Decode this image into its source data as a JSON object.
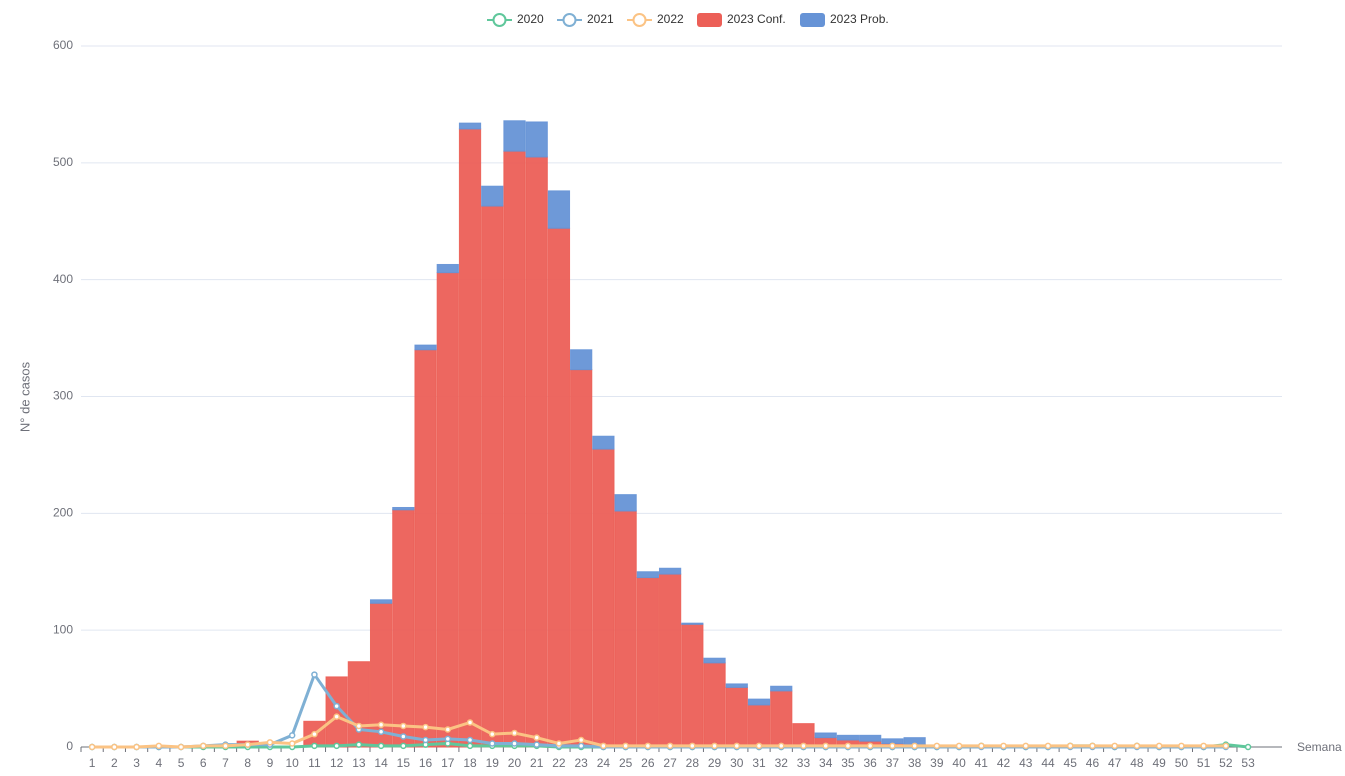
{
  "chart_data": {
    "type": "bar",
    "x_label": "Semana",
    "y_label": "N° de casos",
    "categories": [
      "1",
      "2",
      "3",
      "4",
      "5",
      "6",
      "7",
      "8",
      "9",
      "10",
      "11",
      "12",
      "13",
      "14",
      "15",
      "16",
      "17",
      "18",
      "19",
      "20",
      "21",
      "22",
      "23",
      "24",
      "25",
      "26",
      "27",
      "28",
      "29",
      "30",
      "31",
      "32",
      "33",
      "34",
      "35",
      "36",
      "37",
      "38",
      "39",
      "40",
      "41",
      "42",
      "43",
      "44",
      "45",
      "46",
      "47",
      "48",
      "49",
      "50",
      "51",
      "52",
      "53"
    ],
    "ylim": [
      0,
      600
    ],
    "yticks": [
      0,
      100,
      200,
      300,
      400,
      500,
      600
    ],
    "grid": true,
    "legend": "top",
    "series": [
      {
        "name": "2020",
        "type": "line",
        "color": "#5fc79b",
        "values": [
          0,
          0,
          0,
          0,
          0,
          0,
          0,
          0,
          0,
          0,
          1,
          1,
          2,
          1,
          1,
          2,
          3,
          1,
          1,
          1,
          1,
          0,
          0,
          0,
          0,
          0,
          0,
          0,
          0,
          0,
          0,
          0,
          0,
          0,
          0,
          0,
          0,
          0,
          0,
          0,
          1,
          0,
          0,
          0,
          1,
          1,
          0,
          1,
          0,
          0,
          0,
          2,
          0
        ]
      },
      {
        "name": "2021",
        "type": "line",
        "color": "#7fb0d4",
        "values": [
          0,
          0,
          0,
          0,
          0,
          1,
          2,
          2,
          2,
          10,
          62,
          35,
          15,
          13,
          9,
          6,
          7,
          6,
          3,
          3,
          2,
          1,
          1,
          0,
          0,
          0,
          0,
          0,
          0,
          0,
          0,
          0,
          0,
          0,
          0,
          0,
          0,
          0,
          0,
          0,
          0,
          0,
          0,
          0,
          0,
          0,
          0,
          0,
          0,
          0,
          0,
          0,
          null
        ]
      },
      {
        "name": "2022",
        "type": "line",
        "color": "#fbc384",
        "values": [
          0,
          0,
          0,
          1,
          0,
          1,
          1,
          2,
          4,
          3,
          11,
          26,
          18,
          19,
          18,
          17,
          15,
          21,
          11,
          12,
          8,
          3,
          6,
          1,
          1,
          1,
          1,
          1,
          1,
          1,
          1,
          1,
          1,
          1,
          1,
          1,
          1,
          1,
          1,
          1,
          1,
          1,
          1,
          1,
          1,
          1,
          1,
          1,
          1,
          1,
          1,
          1,
          null
        ]
      },
      {
        "name": "2023 Conf.",
        "type": "bar",
        "color": "#ec5f57",
        "values": [
          0,
          0,
          0,
          0,
          0,
          0,
          0,
          5,
          0,
          0,
          22,
          60,
          73,
          123,
          203,
          340,
          406,
          529,
          463,
          510,
          505,
          444,
          323,
          255,
          202,
          145,
          148,
          105,
          72,
          51,
          36,
          48,
          20,
          8,
          6,
          5,
          3,
          2,
          0,
          0,
          0,
          0,
          0,
          0,
          0,
          0,
          0,
          0,
          0,
          0,
          0,
          0,
          0
        ]
      },
      {
        "name": "2023 Prob.",
        "type": "bar",
        "color": "#6693d6",
        "values": [
          0,
          0,
          0,
          0,
          0,
          0,
          0,
          0,
          0,
          0,
          0,
          0,
          0,
          3,
          2,
          4,
          7,
          5,
          17,
          26,
          30,
          32,
          17,
          11,
          14,
          5,
          5,
          1,
          4,
          3,
          5,
          4,
          0,
          4,
          4,
          5,
          4,
          6,
          0,
          0,
          0,
          0,
          0,
          0,
          0,
          0,
          0,
          0,
          0,
          0,
          0,
          0,
          0
        ]
      }
    ]
  }
}
